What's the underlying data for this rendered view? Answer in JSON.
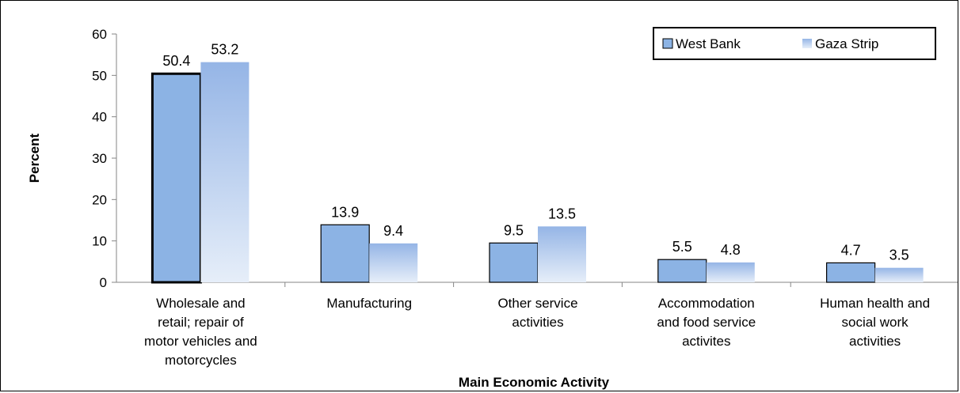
{
  "chart_data": {
    "type": "bar",
    "title": "",
    "xlabel": "Main Economic Activity",
    "ylabel": "Percent",
    "ylim": [
      0,
      60
    ],
    "yticks": [
      0,
      10,
      20,
      30,
      40,
      50,
      60
    ],
    "categories": [
      [
        "Wholesale and",
        "retail; repair of",
        "motor vehicles and",
        "motorcycles"
      ],
      [
        "Manufacturing"
      ],
      [
        "Other service",
        "activities"
      ],
      [
        "Accommodation",
        "and food service",
        "activites"
      ],
      [
        "Human health and",
        "social work",
        "activities"
      ]
    ],
    "series": [
      {
        "name": "West Bank",
        "values": [
          50.4,
          13.9,
          9.5,
          5.5,
          4.7
        ],
        "color": "#8db3e2"
      },
      {
        "name": "Gaza Strip",
        "values": [
          53.2,
          9.4,
          13.5,
          4.8,
          3.5
        ],
        "color": "#aec6ea"
      }
    ],
    "legend_position": "top-right",
    "grid": false
  }
}
